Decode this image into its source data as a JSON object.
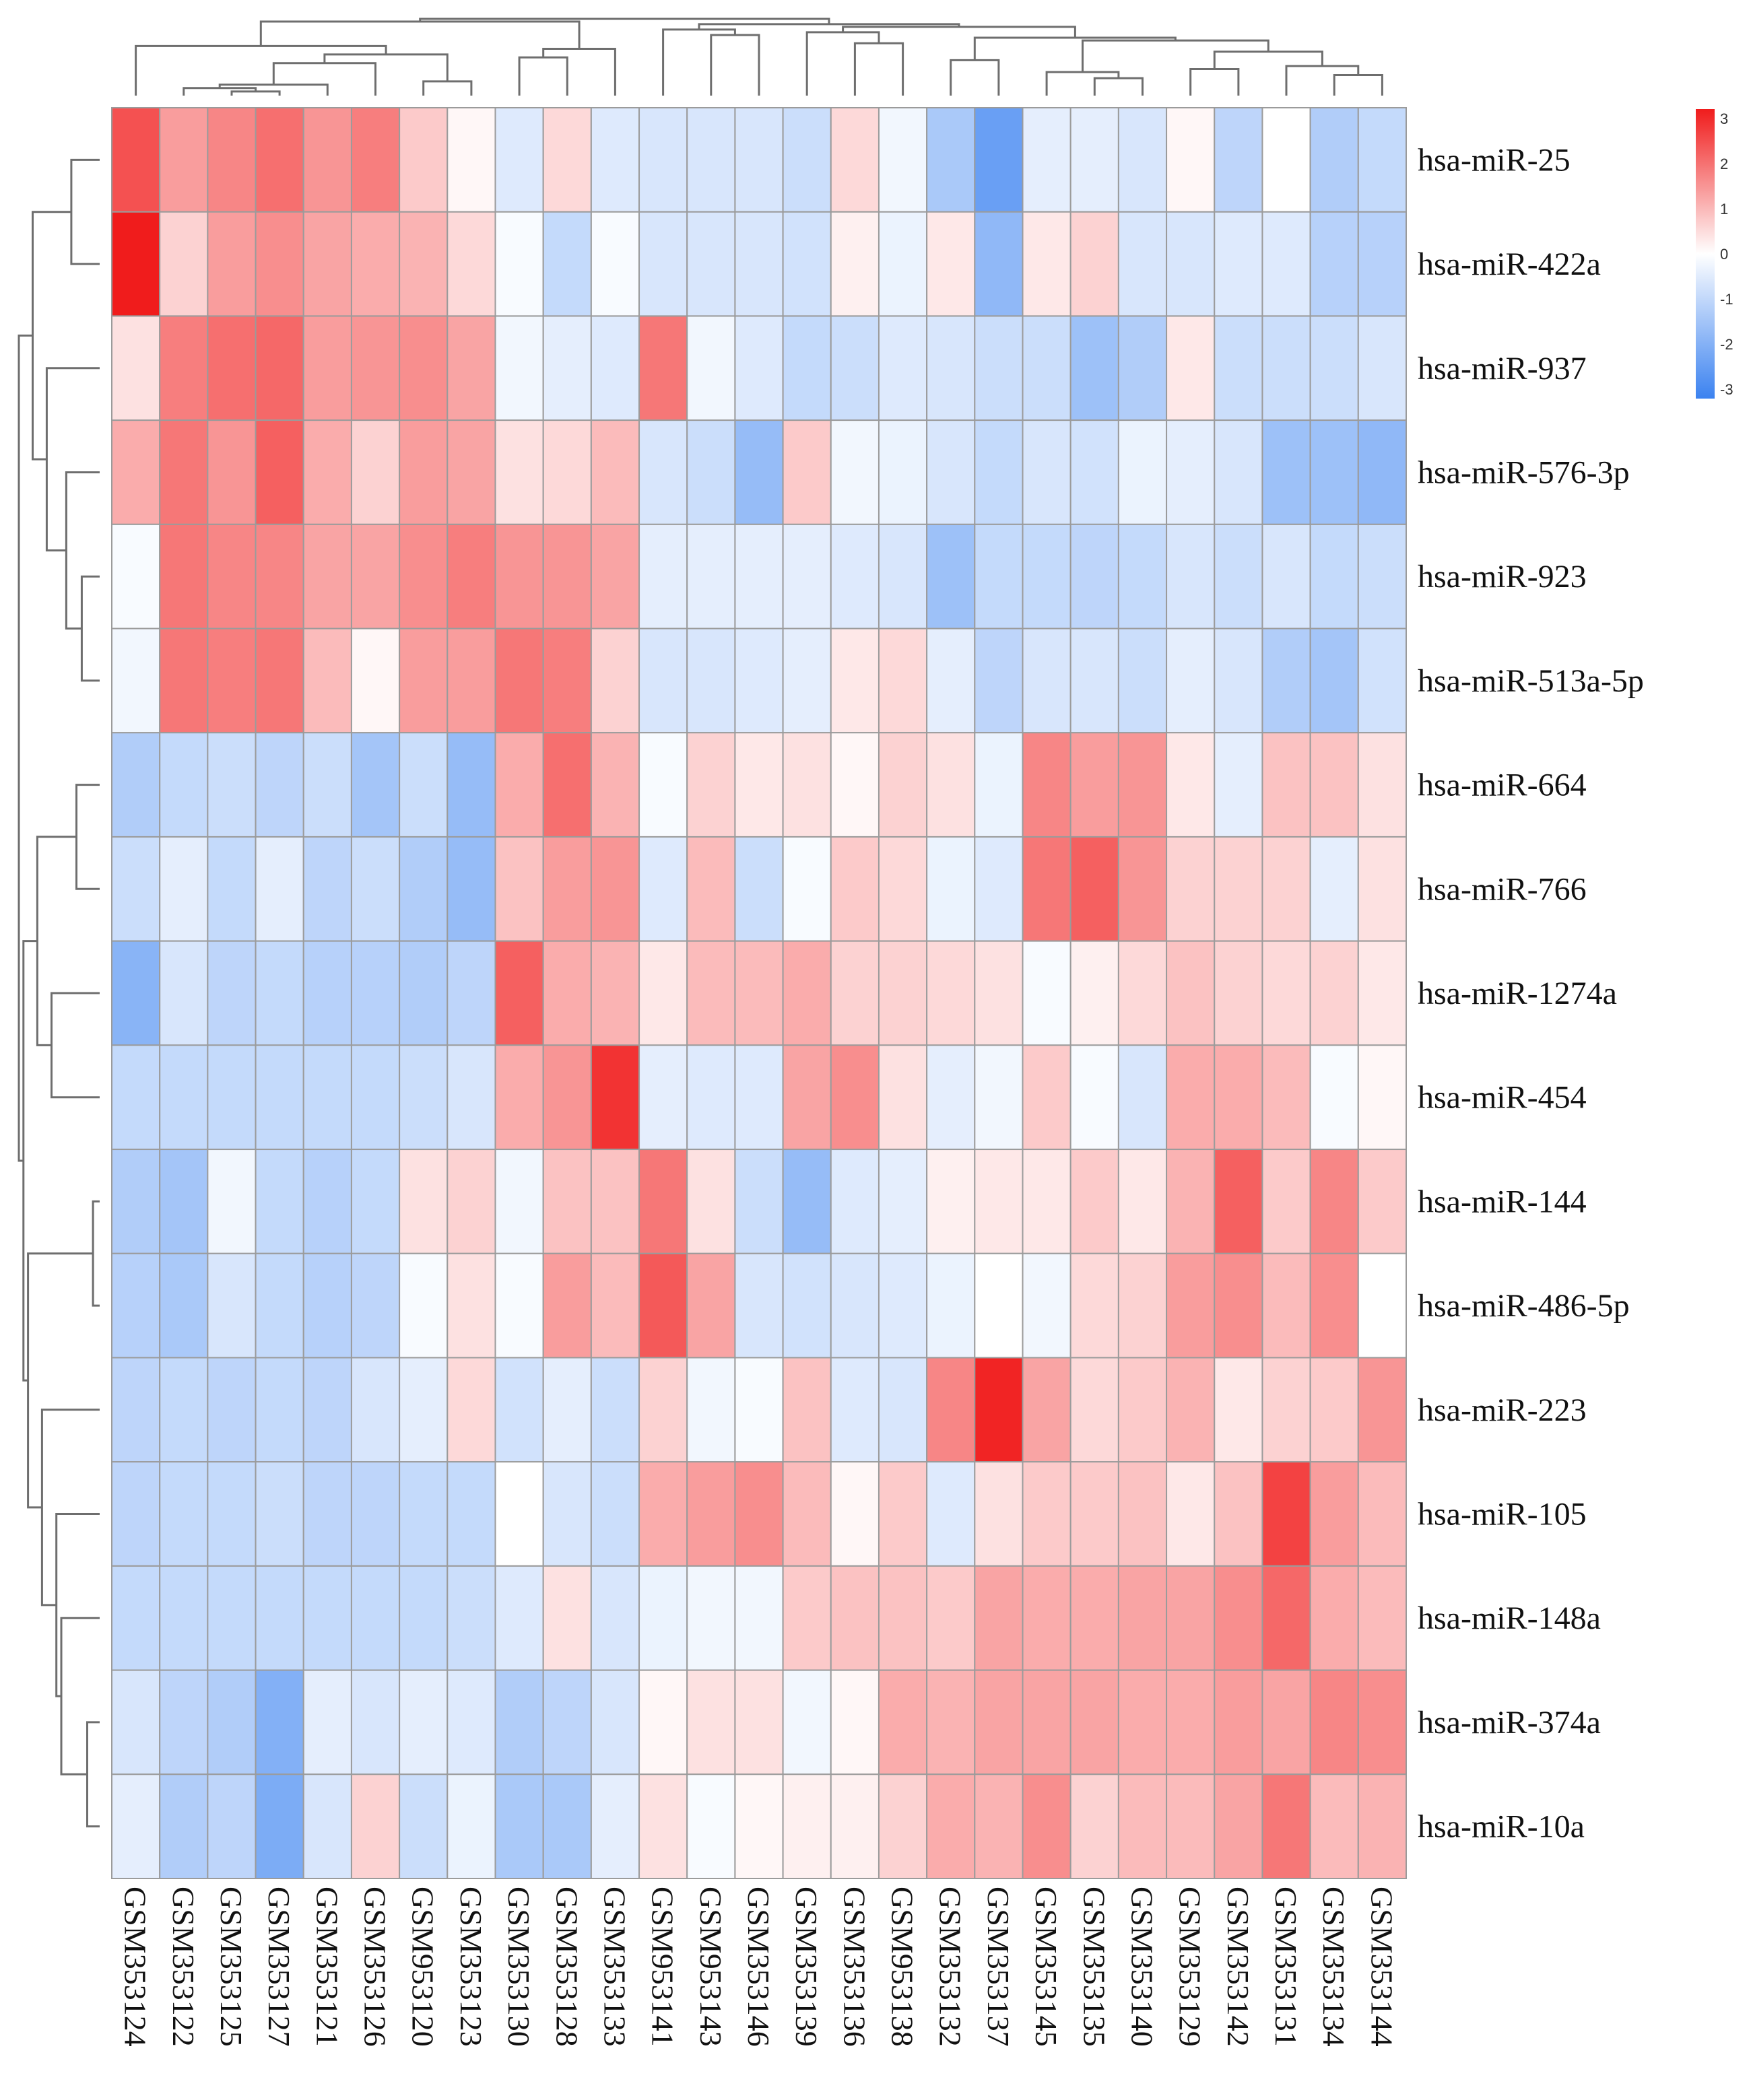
{
  "chart_data": {
    "type": "heatmap",
    "title": "",
    "columns": [
      "GSM353124",
      "GSM353122",
      "GSM353125",
      "GSM353127",
      "GSM353121",
      "GSM353126",
      "GSM953120",
      "GSM353123",
      "GSM353130",
      "GSM353128",
      "GSM353133",
      "GSM953141",
      "GSM953143",
      "GSM353146",
      "GSM353139",
      "GSM353136",
      "GSM953138",
      "GSM353132",
      "GSM353137",
      "GSM353145",
      "GSM353135",
      "GSM353140",
      "GSM353129",
      "GSM353142",
      "GSM353131",
      "GSM353134",
      "GSM353144"
    ],
    "rows": [
      "hsa-miR-25",
      "hsa-miR-422a",
      "hsa-miR-937",
      "hsa-miR-576-3p",
      "hsa-miR-923",
      "hsa-miR-513a-5p",
      "hsa-miR-664",
      "hsa-miR-766",
      "hsa-miR-1274a",
      "hsa-miR-454",
      "hsa-miR-144",
      "hsa-miR-486-5p",
      "hsa-miR-223",
      "hsa-miR-105",
      "hsa-miR-148a",
      "hsa-miR-374a",
      "hsa-miR-10a"
    ],
    "values": [
      [
        2.3,
        1.3,
        1.6,
        1.9,
        1.4,
        1.7,
        0.7,
        0.1,
        -0.5,
        0.5,
        -0.5,
        -0.6,
        -0.6,
        -0.6,
        -0.8,
        0.5,
        -0.2,
        -1.3,
        -2.3,
        -0.4,
        -0.4,
        -0.6,
        0.1,
        -1.0,
        0.0,
        -1.2,
        -0.9
      ],
      [
        3.0,
        0.6,
        1.3,
        1.5,
        1.2,
        1.1,
        1.0,
        0.5,
        -0.1,
        -0.9,
        -0.1,
        -0.6,
        -0.6,
        -0.6,
        -0.7,
        0.2,
        -0.3,
        0.3,
        -1.7,
        0.3,
        0.6,
        -0.6,
        -0.6,
        -0.5,
        -0.5,
        -1.1,
        -1.1
      ],
      [
        0.4,
        1.7,
        1.9,
        2.0,
        1.3,
        1.4,
        1.5,
        1.2,
        -0.2,
        -0.4,
        -0.5,
        1.8,
        -0.2,
        -0.5,
        -0.9,
        -0.8,
        -0.5,
        -0.6,
        -0.8,
        -0.8,
        -1.5,
        -1.2,
        0.3,
        -0.8,
        -0.8,
        -0.8,
        -0.6
      ],
      [
        1.1,
        1.8,
        1.4,
        2.1,
        1.1,
        0.6,
        1.3,
        1.2,
        0.4,
        0.5,
        0.9,
        -0.6,
        -0.8,
        -1.6,
        0.7,
        -0.2,
        -0.3,
        -0.6,
        -0.9,
        -0.6,
        -0.7,
        -0.3,
        -0.4,
        -0.6,
        -1.5,
        -1.5,
        -1.7
      ],
      [
        -0.1,
        1.8,
        1.6,
        1.6,
        1.2,
        1.2,
        1.5,
        1.7,
        1.4,
        1.4,
        1.2,
        -0.4,
        -0.4,
        -0.4,
        -0.4,
        -0.5,
        -0.6,
        -1.5,
        -0.9,
        -0.9,
        -1.0,
        -0.9,
        -0.6,
        -0.8,
        -0.6,
        -0.9,
        -0.8
      ],
      [
        -0.2,
        1.8,
        1.7,
        1.8,
        0.9,
        0.1,
        1.3,
        1.3,
        1.8,
        1.7,
        0.6,
        -0.6,
        -0.6,
        -0.5,
        -0.4,
        0.3,
        0.5,
        -0.4,
        -1.0,
        -0.6,
        -0.6,
        -0.8,
        -0.4,
        -0.6,
        -1.2,
        -1.4,
        -0.7
      ],
      [
        -1.2,
        -0.9,
        -0.8,
        -1.0,
        -0.8,
        -1.4,
        -0.8,
        -1.6,
        1.1,
        1.9,
        1.0,
        -0.1,
        0.6,
        0.3,
        0.4,
        0.1,
        0.6,
        0.4,
        -0.3,
        1.6,
        1.3,
        1.4,
        0.3,
        -0.4,
        0.8,
        0.8,
        0.4
      ],
      [
        -0.8,
        -0.4,
        -0.9,
        -0.4,
        -1.0,
        -0.8,
        -1.2,
        -1.6,
        0.8,
        1.3,
        1.4,
        -0.5,
        0.9,
        -0.8,
        -0.1,
        0.7,
        0.5,
        -0.3,
        -0.5,
        1.8,
        2.1,
        1.4,
        0.6,
        0.6,
        0.6,
        -0.4,
        0.4
      ],
      [
        -1.8,
        -0.6,
        -1.0,
        -0.9,
        -1.1,
        -1.1,
        -1.2,
        -1.0,
        2.1,
        1.1,
        1.0,
        0.3,
        0.9,
        0.9,
        1.1,
        0.6,
        0.6,
        0.5,
        0.4,
        -0.1,
        0.2,
        0.5,
        0.8,
        0.6,
        0.5,
        0.6,
        0.3
      ],
      [
        -0.9,
        -0.9,
        -0.9,
        -0.9,
        -0.9,
        -0.9,
        -0.8,
        -0.6,
        1.1,
        1.4,
        2.7,
        -0.4,
        -0.5,
        -0.5,
        1.2,
        1.5,
        0.4,
        -0.4,
        -0.2,
        0.7,
        -0.1,
        -0.6,
        1.1,
        1.1,
        0.9,
        -0.1,
        0.1
      ],
      [
        -1.2,
        -1.4,
        -0.2,
        -0.9,
        -1.1,
        -0.9,
        0.4,
        0.6,
        -0.2,
        0.8,
        0.8,
        1.8,
        0.4,
        -0.8,
        -1.6,
        -0.5,
        -0.4,
        0.2,
        0.3,
        0.3,
        0.7,
        0.3,
        1.0,
        2.1,
        0.7,
        1.6,
        0.7
      ],
      [
        -1.1,
        -1.3,
        -0.6,
        -0.9,
        -1.1,
        -1.0,
        -0.1,
        0.4,
        -0.1,
        1.3,
        0.9,
        2.2,
        1.2,
        -0.6,
        -0.7,
        -0.6,
        -0.5,
        -0.3,
        0.0,
        -0.2,
        0.5,
        0.6,
        1.3,
        1.5,
        0.9,
        1.5,
        0.0
      ],
      [
        -1.0,
        -0.9,
        -1.0,
        -0.9,
        -1.0,
        -0.6,
        -0.4,
        0.5,
        -0.7,
        -0.4,
        -0.8,
        0.6,
        -0.2,
        -0.1,
        0.8,
        -0.5,
        -0.6,
        1.6,
        2.9,
        1.2,
        0.5,
        0.7,
        1.0,
        0.3,
        0.6,
        0.7,
        1.4
      ],
      [
        -1.0,
        -0.9,
        -0.9,
        -0.8,
        -1.0,
        -1.0,
        -0.9,
        -0.9,
        0.0,
        -0.6,
        -0.8,
        1.1,
        1.3,
        1.5,
        0.9,
        0.1,
        0.7,
        -0.5,
        0.4,
        0.7,
        0.7,
        0.8,
        0.3,
        0.8,
        2.5,
        1.3,
        0.9
      ],
      [
        -0.9,
        -0.9,
        -0.9,
        -0.9,
        -0.9,
        -0.9,
        -0.9,
        -0.8,
        -0.5,
        0.4,
        -0.6,
        -0.3,
        -0.2,
        -0.2,
        0.7,
        0.8,
        0.8,
        0.7,
        1.2,
        1.1,
        1.1,
        1.2,
        1.2,
        1.5,
        2.0,
        1.1,
        0.9
      ],
      [
        -0.6,
        -1.0,
        -1.2,
        -1.9,
        -0.4,
        -0.6,
        -0.4,
        -0.5,
        -1.2,
        -1.0,
        -0.6,
        0.1,
        0.4,
        0.4,
        -0.2,
        0.1,
        1.1,
        1.0,
        1.2,
        1.2,
        1.2,
        1.1,
        1.1,
        1.3,
        1.2,
        1.6,
        1.5
      ],
      [
        -0.4,
        -1.2,
        -1.0,
        -2.0,
        -0.6,
        0.6,
        -0.8,
        -0.3,
        -1.3,
        -1.3,
        -0.4,
        0.4,
        -0.1,
        0.1,
        0.2,
        0.2,
        0.6,
        1.1,
        1.0,
        1.5,
        0.6,
        0.9,
        0.9,
        1.2,
        1.8,
        0.9,
        1.0
      ]
    ],
    "value_range": [
      -3,
      3
    ],
    "colorbar_ticks": [
      "3",
      "2",
      "1",
      "0",
      "-1",
      "-2",
      "-3"
    ],
    "colors": {
      "low": "#3b82f0",
      "mid": "#ffffff",
      "high": "#f01c1c"
    }
  }
}
